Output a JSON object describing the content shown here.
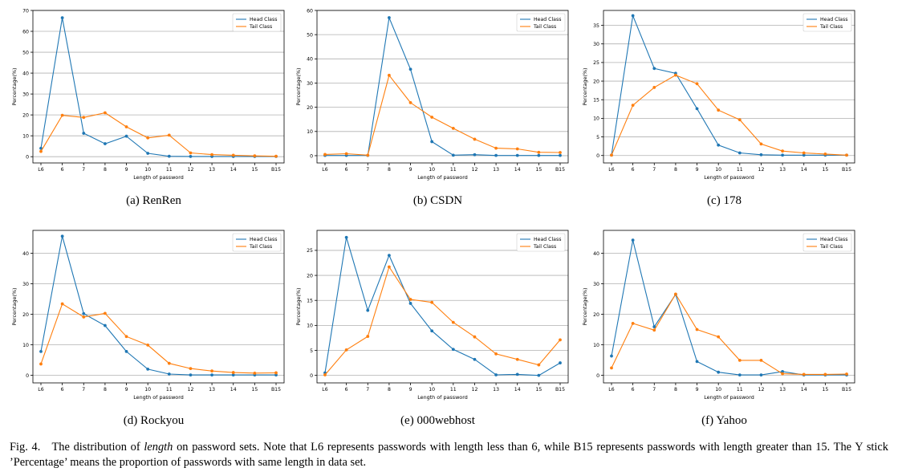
{
  "figure": {
    "caption": {
      "prefix": "Fig. 4.",
      "part1": "The distribution of ",
      "emph": "length",
      "part2": " on password sets. Note that L6 represents passwords with length less than 6, while B15 represents passwords with length greater than 15. The Y stick ’Percentage’ means the proportion of passwords with same length in data set."
    }
  },
  "chart_data": [
    {
      "type": "line",
      "subcaption": "(a) RenRen",
      "categories": [
        "L6",
        "6",
        "7",
        "8",
        "9",
        "10",
        "11",
        "12",
        "13",
        "14",
        "15",
        "B15"
      ],
      "xlabel": "Length of password",
      "ylabel": "Percentage(%)",
      "ylim": [
        -3,
        70
      ],
      "yticks": [
        0,
        10,
        20,
        30,
        40,
        50,
        60,
        70
      ],
      "grid": "horizontal",
      "legend": "top-right",
      "series": [
        {
          "name": "Head Class",
          "color": "#1f77b4",
          "values": [
            4.0,
            66.5,
            11.2,
            6.2,
            9.8,
            1.6,
            0.2,
            0.1,
            0.1,
            0.1,
            0.1,
            0.1
          ]
        },
        {
          "name": "Tail Class",
          "color": "#ff7f0e",
          "values": [
            2.5,
            19.8,
            18.8,
            21.0,
            14.3,
            9.0,
            10.3,
            1.8,
            1.0,
            0.7,
            0.4,
            0.2
          ]
        }
      ]
    },
    {
      "type": "line",
      "subcaption": "(b) CSDN",
      "categories": [
        "L6",
        "6",
        "7",
        "8",
        "9",
        "10",
        "11",
        "12",
        "13",
        "14",
        "15",
        "B15"
      ],
      "xlabel": "Length of password",
      "ylabel": "Percentage(%)",
      "ylim": [
        -3,
        60
      ],
      "yticks": [
        0,
        10,
        20,
        30,
        40,
        50,
        60
      ],
      "grid": "horizontal",
      "legend": "top-right",
      "series": [
        {
          "name": "Head Class",
          "color": "#1f77b4",
          "values": [
            0.1,
            0.1,
            0.1,
            57.0,
            35.7,
            5.8,
            0.2,
            0.4,
            0.1,
            0.1,
            0.1,
            0.1
          ]
        },
        {
          "name": "Tail Class",
          "color": "#ff7f0e",
          "values": [
            0.5,
            0.8,
            0.2,
            33.2,
            21.9,
            15.9,
            11.3,
            6.8,
            3.1,
            2.8,
            1.4,
            1.3
          ]
        }
      ]
    },
    {
      "type": "line",
      "subcaption": "(c) 178",
      "categories": [
        "L6",
        "6",
        "7",
        "8",
        "9",
        "10",
        "11",
        "12",
        "13",
        "14",
        "15",
        "B15"
      ],
      "xlabel": "Length of password",
      "ylabel": "Percentage(%)",
      "ylim": [
        -2,
        39
      ],
      "yticks": [
        0,
        5,
        10,
        15,
        20,
        25,
        30,
        35
      ],
      "grid": "horizontal",
      "legend": "top-right",
      "series": [
        {
          "name": "Head Class",
          "color": "#1f77b4",
          "values": [
            0.1,
            37.6,
            23.4,
            22.1,
            12.6,
            2.8,
            0.7,
            0.2,
            0.1,
            0.1,
            0.1,
            0.1
          ]
        },
        {
          "name": "Tail Class",
          "color": "#ff7f0e",
          "values": [
            0.1,
            13.5,
            18.3,
            21.6,
            19.3,
            12.2,
            9.6,
            3.1,
            1.2,
            0.7,
            0.4,
            0.1
          ]
        }
      ]
    },
    {
      "type": "line",
      "subcaption": "(d) Rockyou",
      "categories": [
        "L6",
        "6",
        "7",
        "8",
        "9",
        "10",
        "11",
        "12",
        "13",
        "14",
        "15",
        "B15"
      ],
      "xlabel": "Length of password",
      "ylabel": "Percentage(%)",
      "ylim": [
        -2.5,
        47.5
      ],
      "yticks": [
        0,
        10,
        20,
        30,
        40
      ],
      "grid": "horizontal",
      "legend": "top-right",
      "series": [
        {
          "name": "Head Class",
          "color": "#1f77b4",
          "values": [
            7.8,
            45.6,
            20.2,
            16.3,
            7.8,
            2.0,
            0.4,
            0.1,
            0.1,
            0.1,
            0.1,
            0.1
          ]
        },
        {
          "name": "Tail Class",
          "color": "#ff7f0e",
          "values": [
            3.7,
            23.4,
            19.1,
            20.3,
            12.7,
            9.9,
            3.9,
            2.2,
            1.4,
            0.9,
            0.7,
            0.8
          ]
        }
      ]
    },
    {
      "type": "line",
      "subcaption": "(e) 000webhost",
      "categories": [
        "L6",
        "6",
        "7",
        "8",
        "9",
        "10",
        "11",
        "12",
        "13",
        "14",
        "15",
        "B15"
      ],
      "xlabel": "Length of password",
      "ylabel": "Percentage(%)",
      "ylim": [
        -1.5,
        29
      ],
      "yticks": [
        0,
        5,
        10,
        15,
        20,
        25
      ],
      "grid": "horizontal",
      "legend": "top-right",
      "series": [
        {
          "name": "Head Class",
          "color": "#1f77b4",
          "values": [
            0.5,
            27.6,
            13.0,
            24.0,
            14.4,
            8.9,
            5.2,
            3.2,
            0.1,
            0.2,
            0.0,
            2.5
          ]
        },
        {
          "name": "Tail Class",
          "color": "#ff7f0e",
          "values": [
            0.1,
            5.1,
            7.8,
            21.7,
            15.2,
            14.6,
            10.6,
            7.7,
            4.3,
            3.2,
            2.1,
            7.1
          ]
        }
      ]
    },
    {
      "type": "line",
      "subcaption": "(f) Yahoo",
      "categories": [
        "L6",
        "6",
        "7",
        "8",
        "9",
        "10",
        "11",
        "12",
        "13",
        "14",
        "15",
        "B15"
      ],
      "xlabel": "Length of password",
      "ylabel": "Percentage(%)",
      "ylim": [
        -2.5,
        47.5
      ],
      "yticks": [
        0,
        10,
        20,
        30,
        40
      ],
      "grid": "horizontal",
      "legend": "top-right",
      "series": [
        {
          "name": "Head Class",
          "color": "#1f77b4",
          "values": [
            6.3,
            44.3,
            15.9,
            26.5,
            4.5,
            1.0,
            0.1,
            0.1,
            1.2,
            0.1,
            0.1,
            0.1
          ]
        },
        {
          "name": "Tail Class",
          "color": "#ff7f0e",
          "values": [
            2.4,
            17.0,
            14.8,
            26.6,
            15.0,
            12.6,
            4.9,
            4.9,
            0.5,
            0.3,
            0.3,
            0.4
          ]
        }
      ]
    }
  ]
}
